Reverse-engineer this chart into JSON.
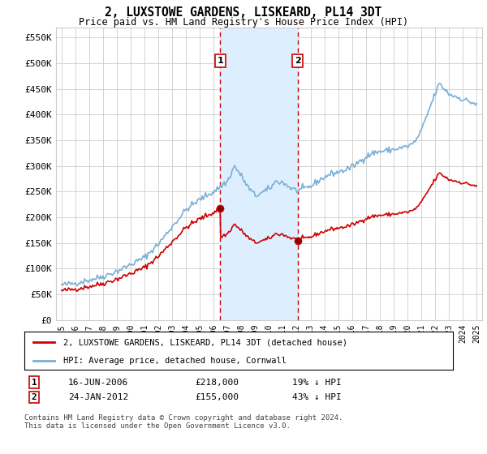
{
  "title": "2, LUXSTOWE GARDENS, LISKEARD, PL14 3DT",
  "subtitle": "Price paid vs. HM Land Registry's House Price Index (HPI)",
  "ylabel_ticks": [
    "£0",
    "£50K",
    "£100K",
    "£150K",
    "£200K",
    "£250K",
    "£300K",
    "£350K",
    "£400K",
    "£450K",
    "£500K",
    "£550K"
  ],
  "ytick_values": [
    0,
    50000,
    100000,
    150000,
    200000,
    250000,
    300000,
    350000,
    400000,
    450000,
    500000,
    550000
  ],
  "ylim": [
    0,
    570000
  ],
  "t1_year": 2006.46,
  "t1_price": 218000,
  "t1_label": "16-JUN-2006",
  "t1_price_str": "£218,000",
  "t1_hpi_str": "19% ↓ HPI",
  "t2_year": 2012.07,
  "t2_price": 155000,
  "t2_label": "24-JAN-2012",
  "t2_price_str": "£155,000",
  "t2_hpi_str": "43% ↓ HPI",
  "legend_property": "2, LUXSTOWE GARDENS, LISKEARD, PL14 3DT (detached house)",
  "legend_hpi": "HPI: Average price, detached house, Cornwall",
  "footer": "Contains HM Land Registry data © Crown copyright and database right 2024.\nThis data is licensed under the Open Government Licence v3.0.",
  "property_color": "#cc0000",
  "hpi_color": "#7aafd4",
  "shade_color": "#ddeeff",
  "vline_color": "#cc0000",
  "background_color": "#ffffff",
  "grid_color": "#cccccc"
}
